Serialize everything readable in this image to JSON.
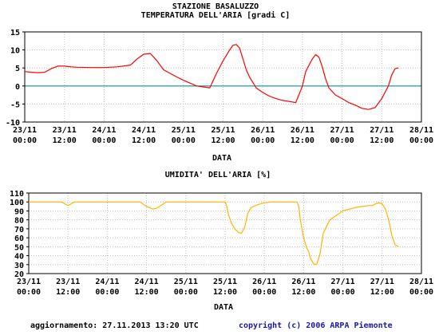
{
  "x_ticks": [
    {
      "day": "23/11",
      "time": "00:00"
    },
    {
      "day": "23/11",
      "time": "12:00"
    },
    {
      "day": "24/11",
      "time": "00:00"
    },
    {
      "day": "24/11",
      "time": "12:00"
    },
    {
      "day": "25/11",
      "time": "00:00"
    },
    {
      "day": "25/11",
      "time": "12:00"
    },
    {
      "day": "26/11",
      "time": "00:00"
    },
    {
      "day": "26/11",
      "time": "12:00"
    },
    {
      "day": "27/11",
      "time": "00:00"
    },
    {
      "day": "27/11",
      "time": "12:00"
    },
    {
      "day": "28/11",
      "time": "00:00"
    }
  ],
  "footer": {
    "updated": "aggiornamento: 27.11.2013 13:20 UTC",
    "copyright": "copyright (c) 2006 ARPA Piemonte"
  },
  "colors": {
    "temperature_line": "#ff0000",
    "humidity_line": "#ffb400",
    "zero_line": "#009999",
    "grid": "#c0c0c0"
  },
  "chart_data": [
    {
      "type": "line",
      "title": "STAZIONE BASALUZZO",
      "subtitle": "TEMPERATURA DELL'ARIA [gradi C]",
      "xlabel": "DATA",
      "ylabel": "",
      "ylim": [
        -10,
        15
      ],
      "yticks": [
        -10,
        -5,
        0,
        5,
        10,
        15
      ],
      "x_range_hours": [
        0,
        120
      ],
      "x_unit": "hours since 23/11 00:00",
      "reference_line": 0,
      "grid": true,
      "series": [
        {
          "name": "",
          "x": [
            0,
            2,
            4,
            6,
            8,
            10,
            12,
            14,
            16,
            20,
            24,
            28,
            32,
            34,
            36,
            38,
            40,
            42,
            44,
            46,
            48,
            52,
            56,
            58,
            60,
            62,
            63,
            64,
            65,
            66,
            67,
            68,
            69,
            70,
            72,
            74,
            76,
            78,
            80,
            82,
            84,
            85,
            86,
            87,
            88,
            89,
            90,
            91,
            92,
            94,
            96,
            98,
            100,
            102,
            104,
            106,
            108,
            110,
            111,
            112,
            113
          ],
          "y": [
            4,
            3.8,
            3.7,
            3.8,
            4.8,
            5.5,
            5.5,
            5.3,
            5.2,
            5.1,
            5.1,
            5.3,
            5.8,
            7.5,
            8.8,
            9,
            7,
            4.5,
            3.5,
            2.5,
            1.6,
            0,
            -0.5,
            3.5,
            7,
            10,
            11.3,
            11.5,
            10.5,
            7.5,
            4.5,
            2.5,
            1,
            -0.5,
            -1.8,
            -2.8,
            -3.5,
            -4,
            -4.3,
            -4.6,
            0,
            4,
            5.8,
            7.5,
            8.7,
            8,
            5.3,
            2,
            -0.5,
            -2.5,
            -3.5,
            -4.6,
            -5.3,
            -6.2,
            -6.5,
            -6,
            -3.5,
            0,
            3,
            4.8,
            5
          ]
        }
      ]
    },
    {
      "type": "line",
      "title": "UMIDITA' DELL'ARIA [%]",
      "xlabel": "DATA",
      "ylabel": "",
      "ylim": [
        20,
        110
      ],
      "yticks": [
        20,
        30,
        40,
        50,
        60,
        70,
        80,
        90,
        100,
        110
      ],
      "x_range_hours": [
        0,
        120
      ],
      "x_unit": "hours since 23/11 00:00",
      "grid": true,
      "series": [
        {
          "name": "",
          "x": [
            0,
            10,
            11,
            12,
            13,
            14,
            16,
            34,
            36,
            38,
            39,
            40,
            42,
            60,
            60.5,
            61,
            62,
            63,
            64,
            65,
            66,
            67,
            68,
            70,
            72,
            74,
            80,
            82,
            82.5,
            83,
            84,
            85,
            85.5,
            86,
            87,
            88,
            89,
            90,
            92,
            96,
            100,
            104,
            105,
            106,
            107,
            108,
            109,
            110,
            111,
            112,
            113
          ],
          "y": [
            100,
            100,
            98,
            96,
            98,
            100,
            100,
            100,
            95,
            92,
            93,
            95,
            100,
            100,
            96,
            86,
            76,
            70,
            66,
            65,
            72,
            88,
            94,
            97,
            99,
            100,
            100,
            100,
            95,
            80,
            60,
            48,
            45,
            38,
            31,
            30,
            42,
            65,
            80,
            90,
            94,
            96,
            96,
            98,
            99,
            98,
            92,
            80,
            62,
            52,
            50
          ]
        }
      ]
    }
  ]
}
